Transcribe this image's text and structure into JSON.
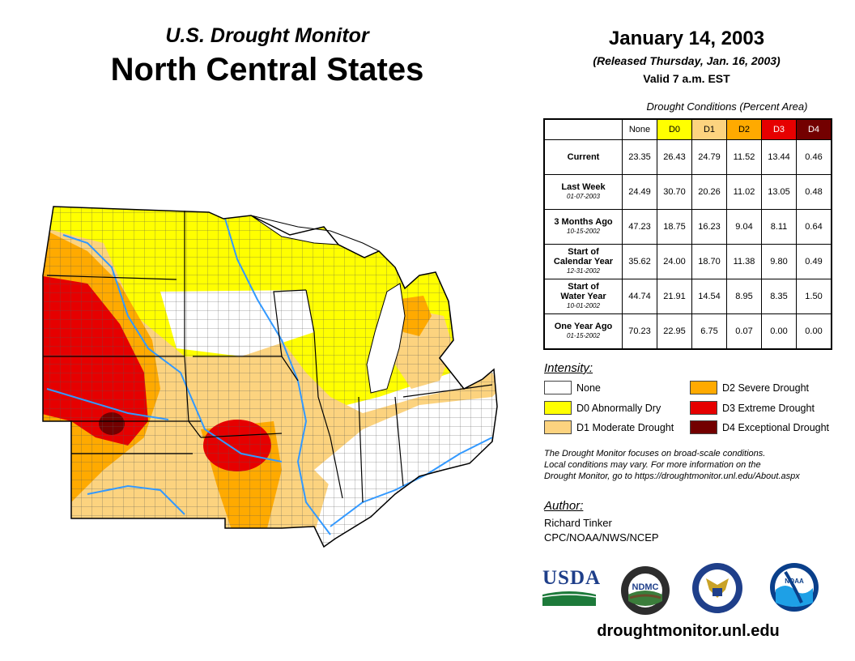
{
  "header": {
    "subtitle": "U.S. Drought Monitor",
    "title": "North Central States",
    "date": "January 14, 2003",
    "released": "(Released Thursday, Jan. 16, 2003)",
    "valid": "Valid 7 a.m. EST"
  },
  "table": {
    "caption": "Drought Conditions (Percent Area)",
    "columns": [
      "None",
      "D0",
      "D1",
      "D2",
      "D3",
      "D4"
    ],
    "rows": [
      {
        "label": "Current",
        "label2": "",
        "sub": "",
        "values": [
          "23.35",
          "26.43",
          "24.79",
          "11.52",
          "13.44",
          "0.46"
        ]
      },
      {
        "label": "Last Week",
        "label2": "",
        "sub": "01-07-2003",
        "values": [
          "24.49",
          "30.70",
          "20.26",
          "11.02",
          "13.05",
          "0.48"
        ]
      },
      {
        "label": "3 Months Ago",
        "label2": "",
        "sub": "10-15-2002",
        "values": [
          "47.23",
          "18.75",
          "16.23",
          "9.04",
          "8.11",
          "0.64"
        ]
      },
      {
        "label": "Start of",
        "label2": "Calendar Year",
        "sub": "12-31-2002",
        "values": [
          "35.62",
          "24.00",
          "18.70",
          "11.38",
          "9.80",
          "0.49"
        ]
      },
      {
        "label": "Start of",
        "label2": "Water Year",
        "sub": "10-01-2002",
        "values": [
          "44.74",
          "21.91",
          "14.54",
          "8.95",
          "8.35",
          "1.50"
        ]
      },
      {
        "label": "One Year Ago",
        "label2": "",
        "sub": "01-15-2002",
        "values": [
          "70.23",
          "22.95",
          "6.75",
          "0.07",
          "0.00",
          "0.00"
        ]
      }
    ]
  },
  "legend": {
    "title": "Intensity:",
    "items": [
      {
        "label": "None",
        "color": "#ffffff"
      },
      {
        "label": "D0 Abnormally Dry",
        "color": "#ffff00"
      },
      {
        "label": "D1 Moderate Drought",
        "color": "#fcd37f"
      },
      {
        "label": "D2 Severe Drought",
        "color": "#ffaa00"
      },
      {
        "label": "D3 Extreme Drought",
        "color": "#e60000"
      },
      {
        "label": "D4 Exceptional Drought",
        "color": "#730000"
      }
    ]
  },
  "note": {
    "line1": "The Drought Monitor focuses on broad-scale conditions.",
    "line2": "Local conditions may vary. For more information on the",
    "line3": "Drought Monitor, go to https://droughtmonitor.unl.edu/About.aspx"
  },
  "author": {
    "heading": "Author:",
    "name": "Richard Tinker",
    "org": "CPC/NOAA/NWS/NCEP"
  },
  "logos": {
    "usda": "USDA",
    "ndmc": "NDMC",
    "noaa": "NOAA"
  },
  "footer": {
    "site": "droughtmonitor.unl.edu"
  },
  "map": {
    "colors": {
      "none": "#ffffff",
      "d0": "#ffff00",
      "d1": "#fcd37f",
      "d2": "#ffaa00",
      "d3": "#e60000",
      "d4": "#730000",
      "water": "#3399ff",
      "border": "#000000"
    }
  }
}
